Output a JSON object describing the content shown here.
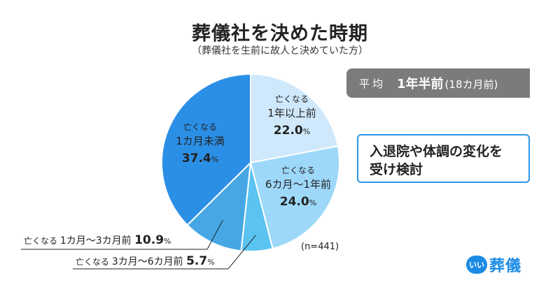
{
  "chart_data": {
    "type": "pie",
    "title": "葬儀社を決めた時期",
    "subtitle": "（葬儀社を生前に故人と決めていた方）",
    "sample_note": "(n=441)",
    "prefix": "亡くなる",
    "unit": "%",
    "slices": [
      {
        "period": "1年以上前",
        "value": 22.0,
        "value_text": "22.0",
        "color": "#cfe8fb"
      },
      {
        "period": "6カ月〜1年前",
        "value": 24.0,
        "value_text": "24.0",
        "color": "#9dd8f9"
      },
      {
        "period": "3カ月〜6カ月前",
        "value": 5.7,
        "value_text": "5.7",
        "color": "#5bc3f2"
      },
      {
        "period": "1カ月〜3カ月前",
        "value": 10.9,
        "value_text": "10.9",
        "color": "#46a7e4"
      },
      {
        "period": "1カ月未満",
        "value": 37.4,
        "value_text": "37.4",
        "color": "#2b8fe6"
      }
    ]
  },
  "average": {
    "label": "平均",
    "value": "1年半前",
    "note": "(18カ月前)"
  },
  "reason_lines": [
    "入退院や体調の変化を",
    "受け検討"
  ],
  "brand": {
    "badge": "いい",
    "name": "葬儀",
    "color": "#1c8be5"
  }
}
